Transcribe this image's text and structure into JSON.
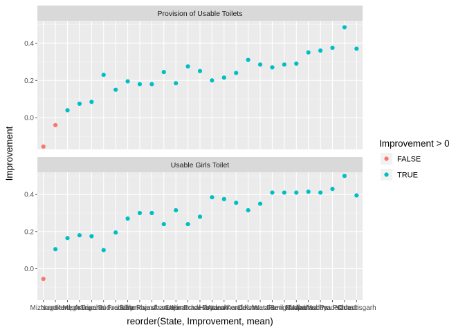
{
  "chart_data": {
    "type": "scatter",
    "xlabel": "reorder(State, Improvement, mean)",
    "ylabel": "Improvement",
    "yticks": [
      0.0,
      0.2,
      0.4
    ],
    "ytick_labels": [
      "0.0",
      "0.2",
      "0.4"
    ],
    "ylim": [
      -0.17,
      0.52
    ],
    "grid": true,
    "legend": {
      "title": "Improvement > 0",
      "placement": "right",
      "entries": [
        {
          "label": "FALSE",
          "color": "#F8766D"
        },
        {
          "label": "TRUE",
          "color": "#00BFC4"
        }
      ]
    },
    "categories": [
      "Mizoram",
      "Nagaland",
      "Manipur",
      "Meghalaya",
      "Tripura",
      "Arunachal Pradesh",
      "Puducherry",
      "Bihar",
      "Jharkhand",
      "Rajasthan",
      "Assam",
      "Gujarat",
      "Uttar Pradesh",
      "Himachal Pradesh",
      "Haryana",
      "Uttarakhand",
      "Kerala",
      "Odisha",
      "Karnataka",
      "West Bengal",
      "Tamil Nadu",
      "Punjab",
      "Maharashtra",
      "Andhra Pradesh",
      "Madhya Pradesh",
      "Goa",
      "Chhattisgarh"
    ],
    "panels": [
      {
        "title": "Provision of Usable Toilets",
        "values": [
          -0.155,
          -0.04,
          0.04,
          0.075,
          0.085,
          0.23,
          0.15,
          0.195,
          0.18,
          0.18,
          0.245,
          0.185,
          0.275,
          0.25,
          0.2,
          0.215,
          0.24,
          0.31,
          0.285,
          0.27,
          0.285,
          0.29,
          0.35,
          0.36,
          0.375,
          0.485,
          0.37
        ]
      },
      {
        "title": "Usable Girls Toilet",
        "values": [
          -0.055,
          0.105,
          0.165,
          0.18,
          0.175,
          0.1,
          0.195,
          0.27,
          0.3,
          0.3,
          0.24,
          0.315,
          0.24,
          0.28,
          0.385,
          0.375,
          0.355,
          0.315,
          0.35,
          0.41,
          0.41,
          0.41,
          0.415,
          0.41,
          0.43,
          0.5,
          0.395
        ]
      }
    ]
  }
}
